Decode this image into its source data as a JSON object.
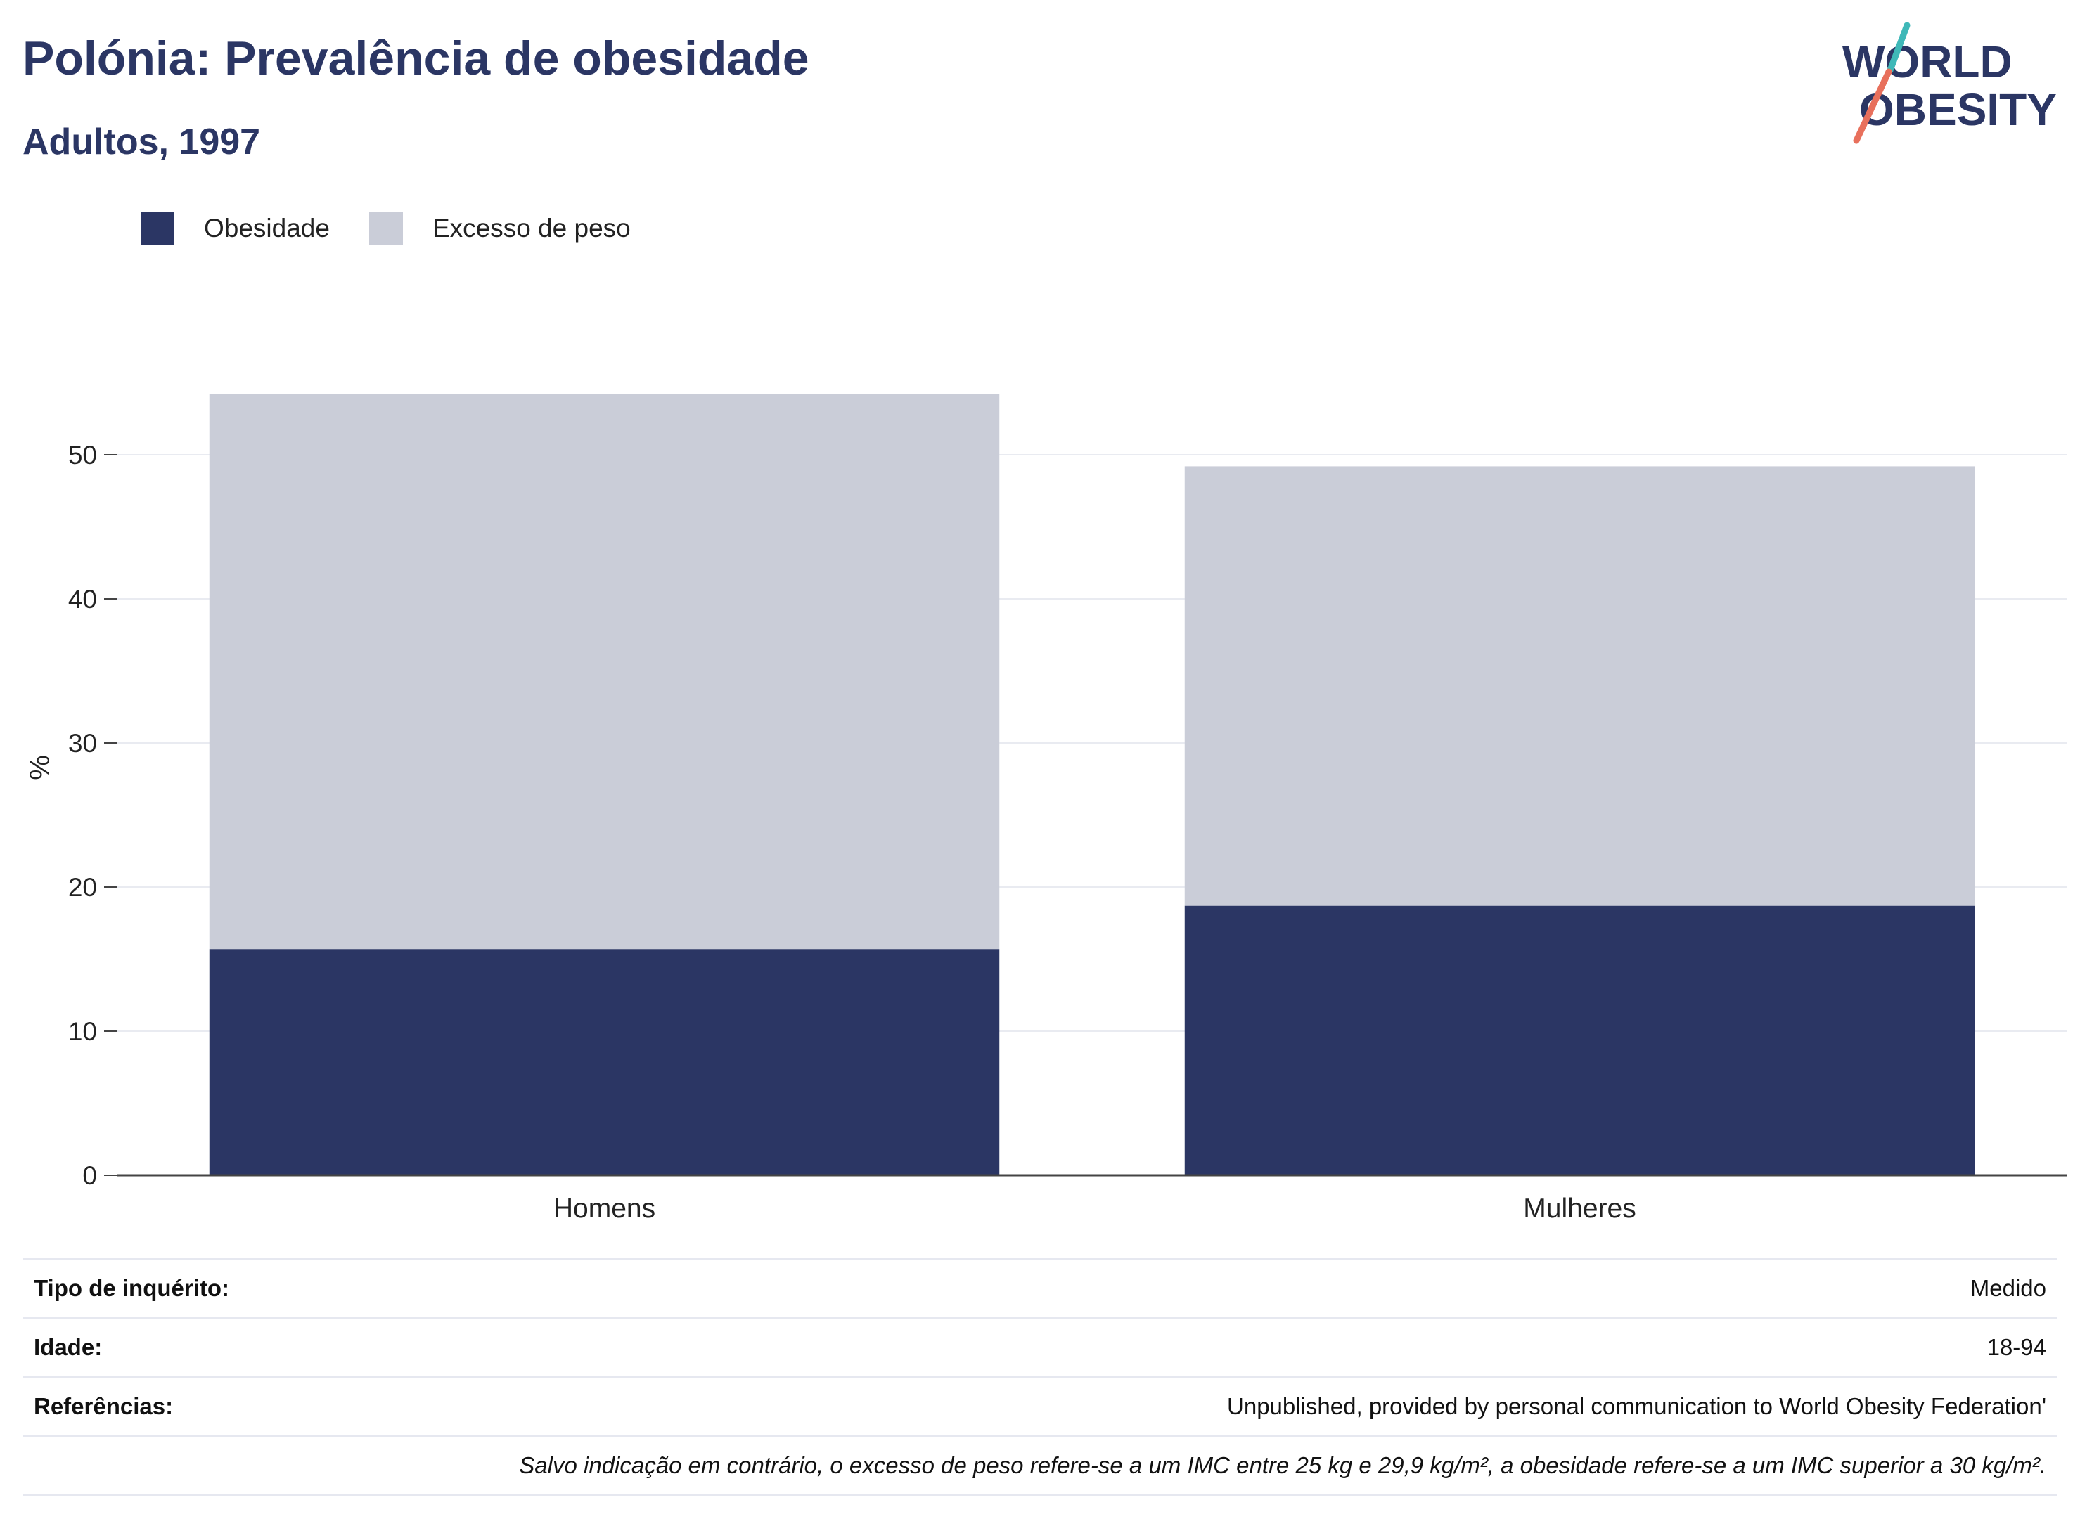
{
  "header": {
    "title": "Polónia: Prevalência de obesidade",
    "subtitle": "Adultos, 1997"
  },
  "logo": {
    "line1": "WORLD",
    "line2": "OBESITY"
  },
  "colors": {
    "obesity": "#2b3664",
    "overweight": "#cacdd8",
    "grid": "#e9ebf1",
    "axis": "#444444",
    "logo_teal": "#3fb8b8",
    "logo_coral": "#e8705c"
  },
  "chart_data": {
    "type": "bar",
    "stacked": true,
    "categories": [
      "Homens",
      "Mulheres"
    ],
    "series": [
      {
        "name": "Obesidade",
        "values": [
          15.7,
          18.7
        ],
        "color": "#2b3664"
      },
      {
        "name": "Excesso de peso",
        "values": [
          38.5,
          30.5
        ],
        "color": "#cacdd8"
      }
    ],
    "ylabel": "%",
    "ylim": [
      0,
      55
    ],
    "yticks": [
      0,
      10,
      20,
      30,
      40,
      50
    ],
    "grid": true,
    "legend_position": "top-left"
  },
  "info": {
    "rows": [
      {
        "key": "Tipo de inquérito:",
        "value": "Medido"
      },
      {
        "key": "Idade:",
        "value": "18-94"
      },
      {
        "key": "Referências:",
        "value": "Unpublished, provided by personal communication to World Obesity Federation'"
      }
    ],
    "note": "Salvo indicação em contrário, o excesso de peso refere-se a um IMC entre 25 kg e 29,9 kg/m², a obesidade refere-se a um IMC superior a 30 kg/m²."
  }
}
